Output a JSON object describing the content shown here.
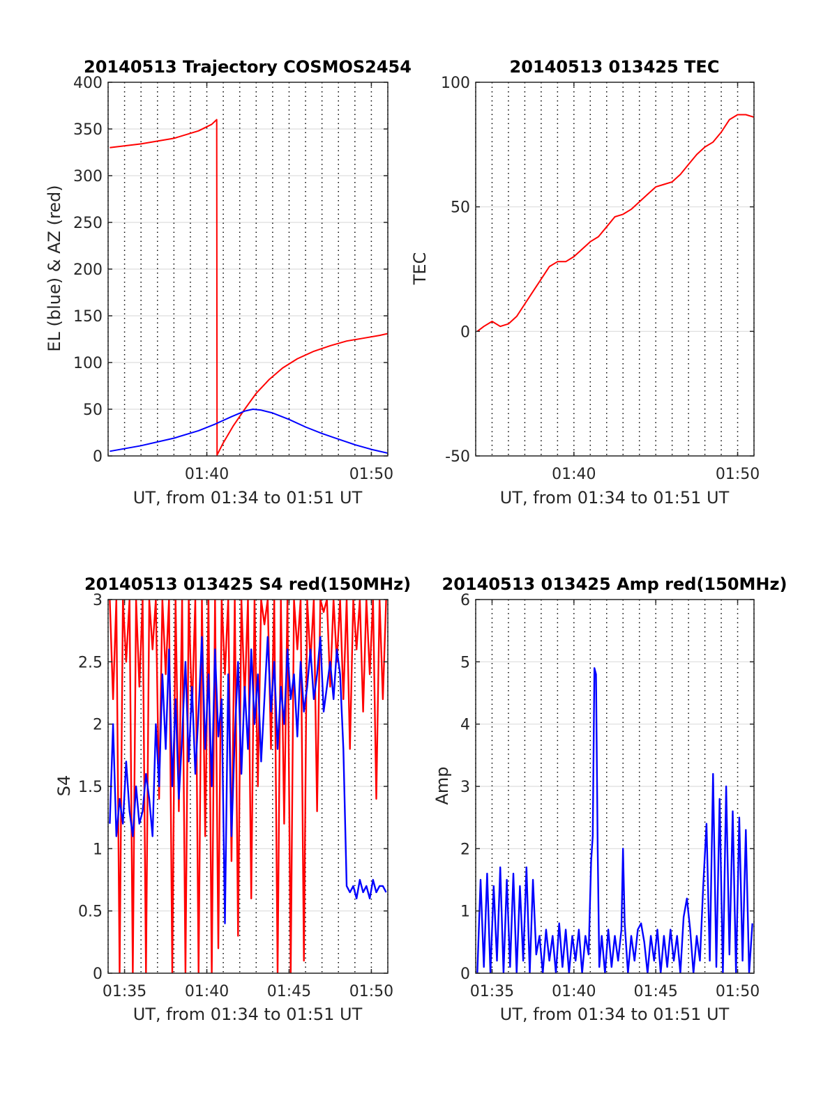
{
  "x_window": {
    "start_min": 94,
    "end_min": 111
  },
  "colors": {
    "el": "#0000ff",
    "az": "#ff0000",
    "tec": "#ff0000",
    "s4_red": "#ff0000",
    "s4_blue": "#0000ff",
    "amp": "#0000ff",
    "grid": "#dddddd",
    "vgrid": "#000000"
  },
  "chart_data": [
    {
      "id": "p1",
      "type": "line",
      "title": "20140513 Trajectory COSMOS2454",
      "xlabel": "UT, from 01:34 to 01:51 UT",
      "ylabel": "EL (blue) & AZ (red)",
      "ylim": [
        0,
        400
      ],
      "yticks": [
        0,
        50,
        100,
        150,
        200,
        250,
        300,
        350,
        400
      ],
      "ytick_labels": [
        "0",
        "50",
        "100",
        "150",
        "200",
        "250",
        "300",
        "350",
        "400"
      ],
      "xticks": [
        100,
        110
      ],
      "xtick_labels": [
        "01:40",
        "01:50"
      ],
      "vgrid_step_min": 1,
      "grid": true,
      "series": [
        {
          "color_key": "az",
          "x": [
            94.1,
            96,
            98,
            99.5,
            100.3,
            100.6,
            100.62,
            101,
            101.6,
            102.3,
            103,
            103.8,
            104.6,
            105.5,
            106.5,
            107.5,
            108.5,
            109.5,
            110.5,
            111
          ],
          "y": [
            330,
            334,
            340,
            348,
            355,
            360,
            1,
            14,
            32,
            50,
            67,
            82,
            94,
            104,
            112,
            118,
            123,
            126,
            129,
            131
          ]
        },
        {
          "color_key": "el",
          "x": [
            94.1,
            96,
            98,
            99.5,
            100.5,
            101.5,
            102.3,
            102.8,
            103.3,
            104,
            105,
            106,
            107,
            108,
            109,
            110,
            111
          ],
          "y": [
            5,
            11,
            19,
            27,
            34,
            42,
            48,
            50,
            49,
            46,
            39,
            31,
            24,
            18,
            12,
            7,
            3
          ]
        }
      ]
    },
    {
      "id": "p2",
      "type": "line",
      "title": "20140513 013425 TEC",
      "xlabel": "UT, from 01:34 to 01:51 UT",
      "ylabel": "TEC",
      "ylim": [
        -50,
        100
      ],
      "yticks": [
        -50,
        0,
        50,
        100
      ],
      "ytick_labels": [
        "-50",
        "0",
        "50",
        "100"
      ],
      "xticks": [
        100,
        110
      ],
      "xtick_labels": [
        "01:40",
        "01:50"
      ],
      "vgrid_step_min": 1,
      "grid": true,
      "series": [
        {
          "color_key": "tec",
          "x": [
            94.1,
            94.5,
            95,
            95.5,
            96,
            96.5,
            97,
            97.5,
            98,
            98.5,
            99,
            99.5,
            100,
            100.5,
            101,
            101.5,
            102,
            102.5,
            103,
            103.5,
            104,
            104.5,
            105,
            105.5,
            106,
            106.5,
            107,
            107.5,
            108,
            108.5,
            109,
            109.5,
            110,
            110.5,
            111
          ],
          "y": [
            0,
            2,
            4,
            2,
            3,
            6,
            11,
            16,
            21,
            26,
            28,
            28,
            30,
            33,
            36,
            38,
            42,
            46,
            47,
            49,
            52,
            55,
            58,
            59,
            60,
            63,
            67,
            71,
            74,
            76,
            80,
            85,
            87,
            87,
            86
          ]
        }
      ]
    },
    {
      "id": "p3",
      "type": "line",
      "title": "20140513 013425 S4 red(150MHz)",
      "xlabel": "UT, from 01:34 to 01:51 UT",
      "ylabel": "S4",
      "ylim": [
        0,
        3
      ],
      "yticks": [
        0,
        0.5,
        1,
        1.5,
        2,
        2.5,
        3
      ],
      "ytick_labels": [
        "0",
        "0.5",
        "1",
        "1.5",
        "2",
        "2.5",
        "3"
      ],
      "xticks": [
        95,
        100,
        105,
        110
      ],
      "xtick_labels": [
        "01:35",
        "01:40",
        "01:45",
        "01:50"
      ],
      "vgrid_step_min": 1,
      "grid": true,
      "series": [
        {
          "color_key": "s4_red",
          "x": [
            94.1,
            94.3,
            94.5,
            94.7,
            94.9,
            95.1,
            95.3,
            95.5,
            95.7,
            95.9,
            96.1,
            96.3,
            96.5,
            96.7,
            96.9,
            97.1,
            97.3,
            97.5,
            97.7,
            97.9,
            98.1,
            98.3,
            98.5,
            98.7,
            98.9,
            99.1,
            99.3,
            99.5,
            99.7,
            99.9,
            100.1,
            100.3,
            100.5,
            100.7,
            100.9,
            101.1,
            101.3,
            101.5,
            101.7,
            101.9,
            102.1,
            102.3,
            102.5,
            102.7,
            102.9,
            103.1,
            103.3,
            103.5,
            103.7,
            103.9,
            104.1,
            104.3,
            104.5,
            104.7,
            104.9,
            105.1,
            105.3,
            105.5,
            105.7,
            105.9,
            106.1,
            106.3,
            106.5,
            106.7,
            106.9,
            107.1,
            107.3,
            107.5,
            107.7,
            107.9,
            108.1,
            108.3,
            108.5,
            108.7,
            108.9,
            109.1,
            109.3,
            109.5,
            109.7,
            109.9,
            110.1,
            110.3,
            110.5,
            110.7,
            110.9
          ],
          "y": [
            3,
            2.2,
            3,
            0,
            3,
            2.5,
            3,
            0,
            3,
            2.3,
            3,
            0,
            3,
            2.6,
            3,
            1.4,
            3,
            2.4,
            3,
            0,
            3,
            1.3,
            3,
            0,
            3,
            2.1,
            3,
            0,
            3,
            1.1,
            3,
            0,
            3,
            0.2,
            3,
            2.4,
            3,
            0.9,
            3,
            0.3,
            3,
            2.2,
            3,
            0.6,
            3,
            1.5,
            3,
            2.8,
            3,
            1.8,
            3,
            0,
            3,
            1.2,
            3,
            0,
            3,
            2.6,
            3,
            0.1,
            3,
            2.5,
            3,
            1.3,
            3,
            2.9,
            3,
            2.3,
            3,
            2.5,
            3,
            2.2,
            3,
            1.8,
            3,
            2.6,
            3,
            2.1,
            3,
            2.4,
            3,
            1.4,
            3,
            2.2,
            3
          ]
        },
        {
          "color_key": "s4_blue",
          "x": [
            94.1,
            94.3,
            94.5,
            94.7,
            94.9,
            95.1,
            95.3,
            95.5,
            95.7,
            95.9,
            96.1,
            96.3,
            96.5,
            96.7,
            96.9,
            97.1,
            97.3,
            97.5,
            97.7,
            97.9,
            98.1,
            98.3,
            98.5,
            98.7,
            98.9,
            99.1,
            99.3,
            99.5,
            99.7,
            99.9,
            100.1,
            100.3,
            100.5,
            100.7,
            100.9,
            101.1,
            101.3,
            101.5,
            101.7,
            101.9,
            102.1,
            102.3,
            102.5,
            102.7,
            102.9,
            103.1,
            103.3,
            103.5,
            103.7,
            103.9,
            104.1,
            104.3,
            104.5,
            104.7,
            104.9,
            105.1,
            105.3,
            105.5,
            105.7,
            105.9,
            106.1,
            106.3,
            106.5,
            106.7,
            106.9,
            107.1,
            107.3,
            107.5,
            107.7,
            107.9,
            108.1,
            108.3,
            108.5,
            108.7,
            108.9,
            109.1,
            109.3,
            109.5,
            109.7,
            109.9,
            110.1,
            110.3,
            110.5,
            110.7,
            110.9
          ],
          "y": [
            1.2,
            2,
            1.1,
            1.4,
            1.2,
            1.7,
            1.3,
            1.1,
            1.5,
            1.2,
            1.3,
            1.6,
            1.4,
            1.1,
            2,
            1.5,
            2.4,
            1.8,
            2.6,
            1.5,
            2.2,
            1.4,
            1.9,
            2.5,
            1.7,
            2.3,
            1.6,
            2.1,
            2.7,
            1.8,
            2.4,
            1.5,
            2.6,
            1.9,
            2.2,
            0.4,
            2.4,
            1.1,
            1.9,
            2.5,
            1.6,
            2.3,
            1.8,
            2.6,
            2,
            2.4,
            1.7,
            2.2,
            2.7,
            2.1,
            2.5,
            1.8,
            2.3,
            2,
            2.6,
            2.2,
            2.4,
            1.9,
            2.5,
            2.1,
            2.3,
            2.6,
            2.2,
            2.4,
            2.7,
            2.1,
            2.3,
            2.5,
            2.2,
            2.6,
            2.4,
            1.8,
            0.7,
            0.65,
            0.7,
            0.6,
            0.75,
            0.65,
            0.7,
            0.6,
            0.75,
            0.65,
            0.7,
            0.7,
            0.65
          ]
        }
      ]
    },
    {
      "id": "p4",
      "type": "line",
      "title": "20140513 013425 Amp red(150MHz)",
      "xlabel": "UT, from 01:34 to 01:51 UT",
      "ylabel": "Amp",
      "ylim": [
        0,
        6
      ],
      "yticks": [
        0,
        1,
        2,
        3,
        4,
        5,
        6
      ],
      "ytick_labels": [
        "0",
        "1",
        "2",
        "3",
        "4",
        "5",
        "6"
      ],
      "xticks": [
        95,
        100,
        105,
        110
      ],
      "xtick_labels": [
        "01:35",
        "01:40",
        "01:45",
        "01:50"
      ],
      "vgrid_step_min": 1,
      "grid": true,
      "series": [
        {
          "color_key": "amp",
          "x": [
            94.1,
            94.3,
            94.5,
            94.7,
            94.9,
            95.1,
            95.3,
            95.5,
            95.7,
            95.9,
            96.1,
            96.3,
            96.5,
            96.7,
            96.9,
            97.1,
            97.3,
            97.5,
            97.7,
            97.9,
            98.1,
            98.3,
            98.5,
            98.7,
            98.9,
            99.1,
            99.3,
            99.5,
            99.7,
            99.9,
            100.1,
            100.3,
            100.5,
            100.7,
            100.9,
            101.05,
            101.15,
            101.25,
            101.35,
            101.45,
            101.55,
            101.7,
            101.9,
            102.1,
            102.3,
            102.5,
            102.7,
            102.9,
            103.0,
            103.1,
            103.3,
            103.5,
            103.7,
            103.9,
            104.1,
            104.3,
            104.5,
            104.7,
            104.9,
            105.1,
            105.3,
            105.5,
            105.7,
            105.9,
            106.1,
            106.3,
            106.5,
            106.7,
            106.9,
            107.1,
            107.3,
            107.5,
            107.7,
            107.9,
            108.1,
            108.3,
            108.5,
            108.7,
            108.9,
            109.1,
            109.3,
            109.5,
            109.7,
            109.9,
            110.1,
            110.3,
            110.5,
            110.7,
            110.9
          ],
          "y": [
            0,
            1.5,
            0.1,
            1.6,
            0,
            1.4,
            0.2,
            1.7,
            0,
            1.5,
            0.1,
            1.6,
            0,
            1.4,
            0.2,
            1.7,
            0,
            1.5,
            0.3,
            0.6,
            0,
            0.7,
            0.2,
            0.6,
            0,
            0.8,
            0.1,
            0.7,
            0,
            0.6,
            0.2,
            0.7,
            0,
            0.6,
            0.3,
            1.8,
            2.2,
            4.9,
            4.8,
            2.0,
            0.1,
            0.6,
            0,
            0.7,
            0.1,
            0.6,
            0.2,
            0.7,
            2.0,
            0.8,
            0,
            0.6,
            0.2,
            0.7,
            0.8,
            0.5,
            0,
            0.6,
            0.2,
            0.7,
            0,
            0.6,
            0.1,
            0.7,
            0.2,
            0.6,
            0,
            0.9,
            1.2,
            0.7,
            0,
            0.6,
            0.2,
            1.4,
            2.4,
            0.2,
            3.2,
            0.1,
            2.8,
            0,
            3.0,
            0.3,
            2.6,
            0,
            2.5,
            0.2,
            2.3,
            0,
            0.8
          ]
        }
      ]
    }
  ]
}
